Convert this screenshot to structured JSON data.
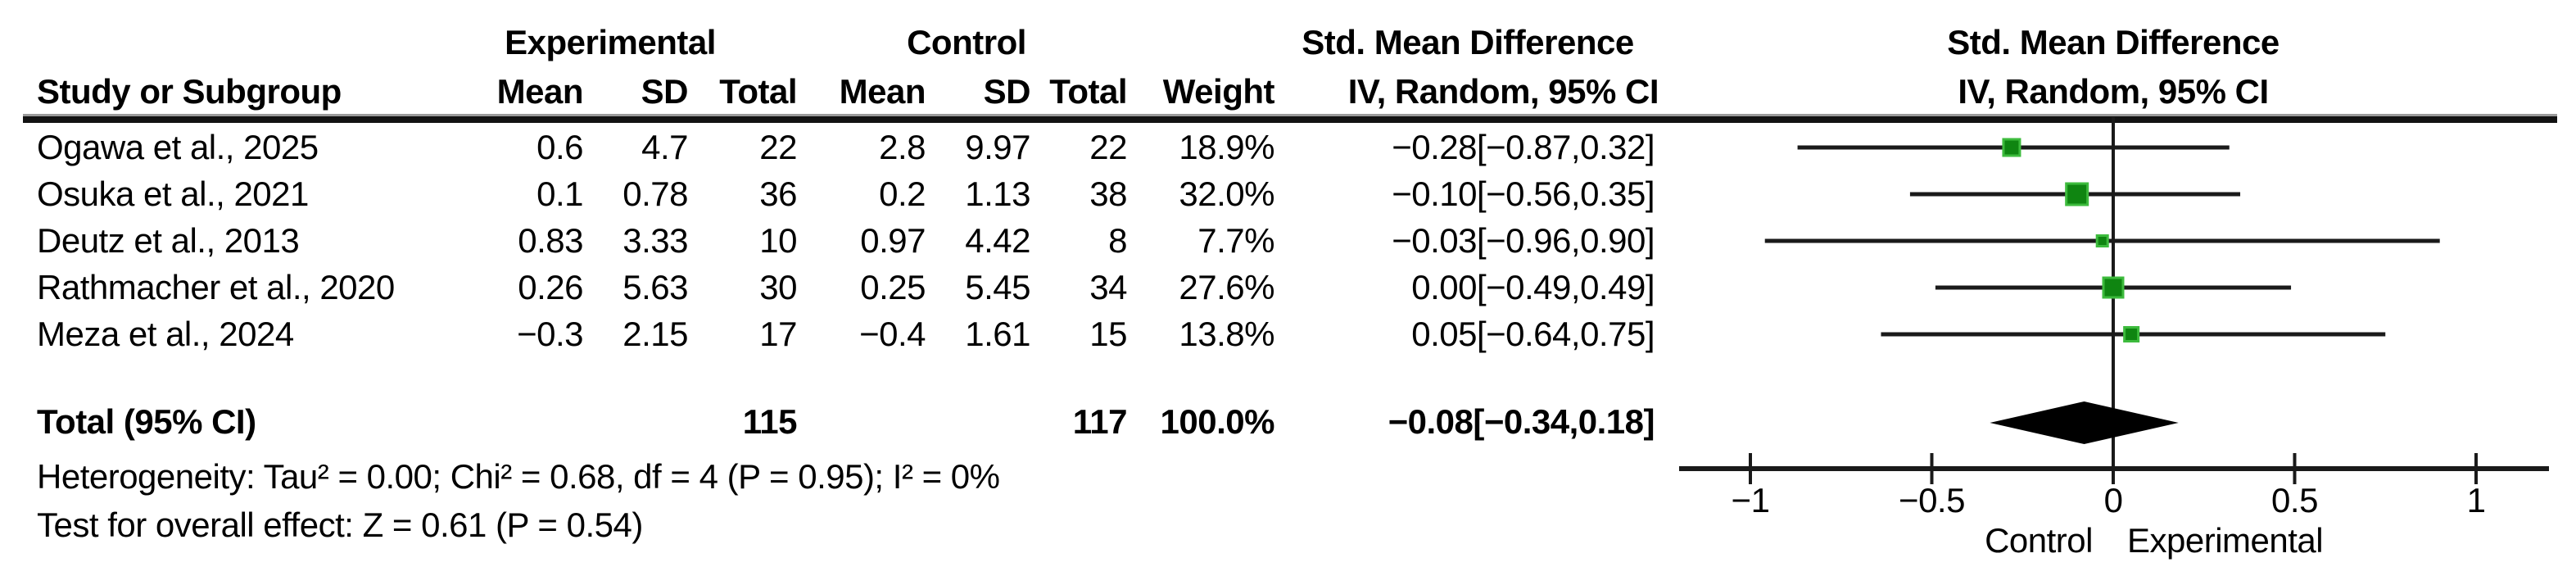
{
  "table": {
    "group_headers": {
      "experimental": "Experimental",
      "control": "Control",
      "smd": "Std. Mean Difference"
    },
    "column_headers": {
      "study": "Study or Subgroup",
      "mean_exp": "Mean",
      "sd_exp": "SD",
      "total_exp": "Total",
      "mean_ctl": "Mean",
      "sd_ctl": "SD",
      "total_ctl": "Total",
      "weight": "Weight",
      "ci": "IV, Random, 95% CI"
    },
    "rows": [
      {
        "study": "Ogawa et al., 2025",
        "mean_exp": "0.6",
        "sd_exp": "4.7",
        "total_exp": "22",
        "mean_ctl": "2.8",
        "sd_ctl": "9.97",
        "total_ctl": "22",
        "weight": "18.9%",
        "ci": "−0.28[−0.87,0.32]"
      },
      {
        "study": "Osuka et al., 2021",
        "mean_exp": "0.1",
        "sd_exp": "0.78",
        "total_exp": "36",
        "mean_ctl": "0.2",
        "sd_ctl": "1.13",
        "total_ctl": "38",
        "weight": "32.0%",
        "ci": "−0.10[−0.56,0.35]"
      },
      {
        "study": "Deutz et al., 2013",
        "mean_exp": "0.83",
        "sd_exp": "3.33",
        "total_exp": "10",
        "mean_ctl": "0.97",
        "sd_ctl": "4.42",
        "total_ctl": "8",
        "weight": "7.7%",
        "ci": "−0.03[−0.96,0.90]"
      },
      {
        "study": "Rathmacher et al., 2020",
        "mean_exp": "0.26",
        "sd_exp": "5.63",
        "total_exp": "30",
        "mean_ctl": "0.25",
        "sd_ctl": "5.45",
        "total_ctl": "34",
        "weight": "27.6%",
        "ci": "0.00[−0.49,0.49]"
      },
      {
        "study": "Meza et al., 2024",
        "mean_exp": "−0.3",
        "sd_exp": "2.15",
        "total_exp": "17",
        "mean_ctl": "−0.4",
        "sd_ctl": "1.61",
        "total_ctl": "15",
        "weight": "13.8%",
        "ci": "0.05[−0.64,0.75]"
      }
    ],
    "total_row": {
      "label": "Total (95% CI)",
      "total_exp": "115",
      "total_ctl": "117",
      "weight": "100.0%",
      "ci": "−0.08[−0.34,0.18]"
    },
    "footnotes": {
      "heterogeneity": "Heterogeneity: Tau² = 0.00; Chi² = 0.68, df = 4 (P = 0.95); I² = 0%",
      "overall_effect": "Test for overall effect: Z = 0.61 (P = 0.54)"
    }
  },
  "plot": {
    "header_line1": "Std. Mean Difference",
    "header_line2": "IV, Random, 95% CI",
    "marker_fill": "#0f8511",
    "marker_border": "#3dbb3d",
    "line_color": "#1a1a1a",
    "diamond_color": "#000000",
    "axis": {
      "ticks": [
        {
          "value": -1,
          "label": "−1"
        },
        {
          "value": -0.5,
          "label": "−0.5"
        },
        {
          "value": 0,
          "label": "0"
        },
        {
          "value": 0.5,
          "label": "0.5"
        },
        {
          "value": 1,
          "label": "1"
        }
      ],
      "label_left": "Control",
      "label_right": "Experimental"
    }
  },
  "chart_data": {
    "type": "forest",
    "effect_measure": "Std. Mean Difference",
    "model": "IV, Random, 95% CI",
    "x_ticks": [
      -1,
      -0.5,
      0,
      0.5,
      1
    ],
    "xlim": [
      -1.2,
      1.2
    ],
    "favours_left": "Control",
    "favours_right": "Experimental",
    "studies": [
      {
        "name": "Ogawa et al., 2025",
        "exp_mean": 0.6,
        "exp_sd": 4.7,
        "exp_total": 22,
        "ctl_mean": 2.8,
        "ctl_sd": 9.97,
        "ctl_total": 22,
        "weight_pct": 18.9,
        "smd": -0.28,
        "ci_low": -0.87,
        "ci_high": 0.32
      },
      {
        "name": "Osuka et al., 2021",
        "exp_mean": 0.1,
        "exp_sd": 0.78,
        "exp_total": 36,
        "ctl_mean": 0.2,
        "ctl_sd": 1.13,
        "ctl_total": 38,
        "weight_pct": 32.0,
        "smd": -0.1,
        "ci_low": -0.56,
        "ci_high": 0.35
      },
      {
        "name": "Deutz et al., 2013",
        "exp_mean": 0.83,
        "exp_sd": 3.33,
        "exp_total": 10,
        "ctl_mean": 0.97,
        "ctl_sd": 4.42,
        "ctl_total": 8,
        "weight_pct": 7.7,
        "smd": -0.03,
        "ci_low": -0.96,
        "ci_high": 0.9
      },
      {
        "name": "Rathmacher et al., 2020",
        "exp_mean": 0.26,
        "exp_sd": 5.63,
        "exp_total": 30,
        "ctl_mean": 0.25,
        "ctl_sd": 5.45,
        "ctl_total": 34,
        "weight_pct": 27.6,
        "smd": 0.0,
        "ci_low": -0.49,
        "ci_high": 0.49
      },
      {
        "name": "Meza et al., 2024",
        "exp_mean": -0.3,
        "exp_sd": 2.15,
        "exp_total": 17,
        "ctl_mean": -0.4,
        "ctl_sd": 1.61,
        "ctl_total": 15,
        "weight_pct": 13.8,
        "smd": 0.05,
        "ci_low": -0.64,
        "ci_high": 0.75
      }
    ],
    "total": {
      "label": "Total (95% CI)",
      "exp_total": 115,
      "ctl_total": 117,
      "weight_pct": 100.0,
      "smd": -0.08,
      "ci_low": -0.34,
      "ci_high": 0.18
    },
    "heterogeneity": {
      "tau2": 0.0,
      "chi2": 0.68,
      "df": 4,
      "p": 0.95,
      "i2_pct": 0
    },
    "overall_effect": {
      "z": 0.61,
      "p": 0.54
    }
  }
}
